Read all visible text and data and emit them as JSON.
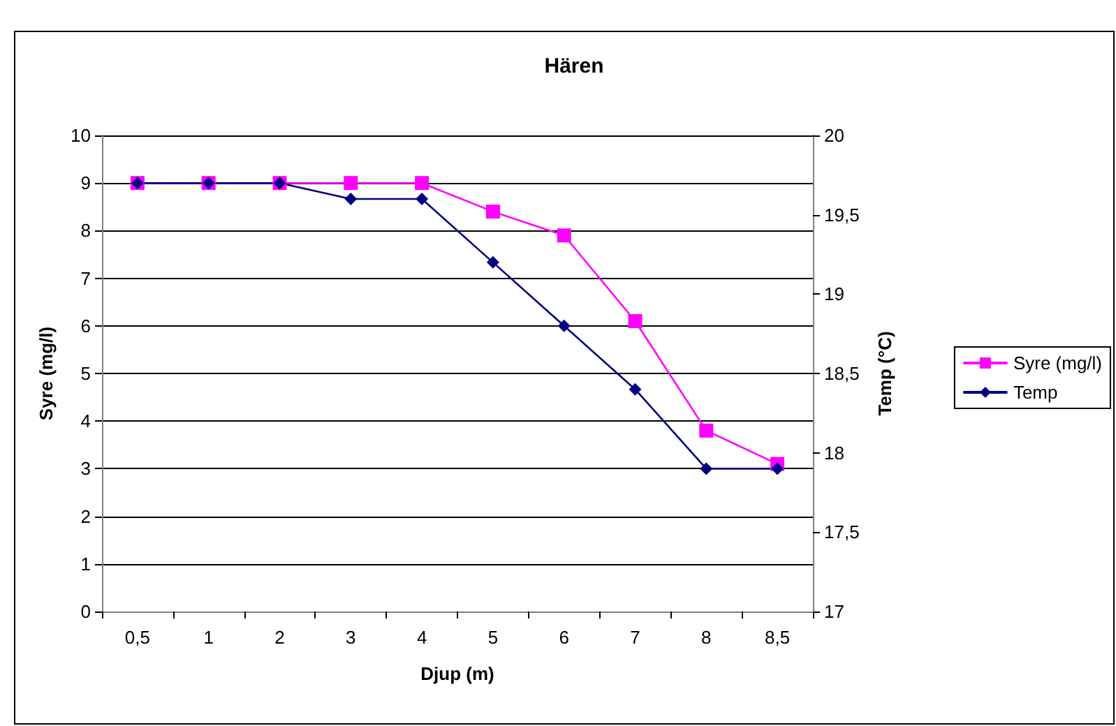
{
  "chart_data": {
    "type": "line",
    "title": "Hären",
    "xlabel": "Djup (m)",
    "ylabel": "Syre (mg/l)",
    "y2label": "Temp (°C)",
    "categories": [
      "0,5",
      "1",
      "2",
      "3",
      "4",
      "5",
      "6",
      "7",
      "8",
      "8,5"
    ],
    "series": [
      {
        "name": "Syre (mg/l)",
        "color": "#ff00ff",
        "marker": "square",
        "values": [
          9,
          9,
          9,
          9,
          9,
          8.4,
          7.9,
          6.1,
          3.8,
          3.1
        ]
      },
      {
        "name": "Temp",
        "color": "#000080",
        "marker": "diamond",
        "axis": "y2",
        "values": [
          19.7,
          19.7,
          19.7,
          19.6,
          19.6,
          19.2,
          18.8,
          18.4,
          17.9,
          17.9
        ]
      }
    ],
    "ylim": [
      0,
      10
    ],
    "yticks": [
      0,
      1,
      2,
      3,
      4,
      5,
      6,
      7,
      8,
      9,
      10
    ],
    "y2lim": [
      17,
      20
    ],
    "y2ticks": [
      17,
      {
        "value": 17.5,
        "label": "17,5"
      },
      18,
      {
        "value": 18.5,
        "label": "18,5"
      },
      19,
      {
        "value": 19.5,
        "label": "19,5"
      },
      20
    ],
    "grid": "y",
    "legend": "right",
    "line_style": "solid"
  }
}
